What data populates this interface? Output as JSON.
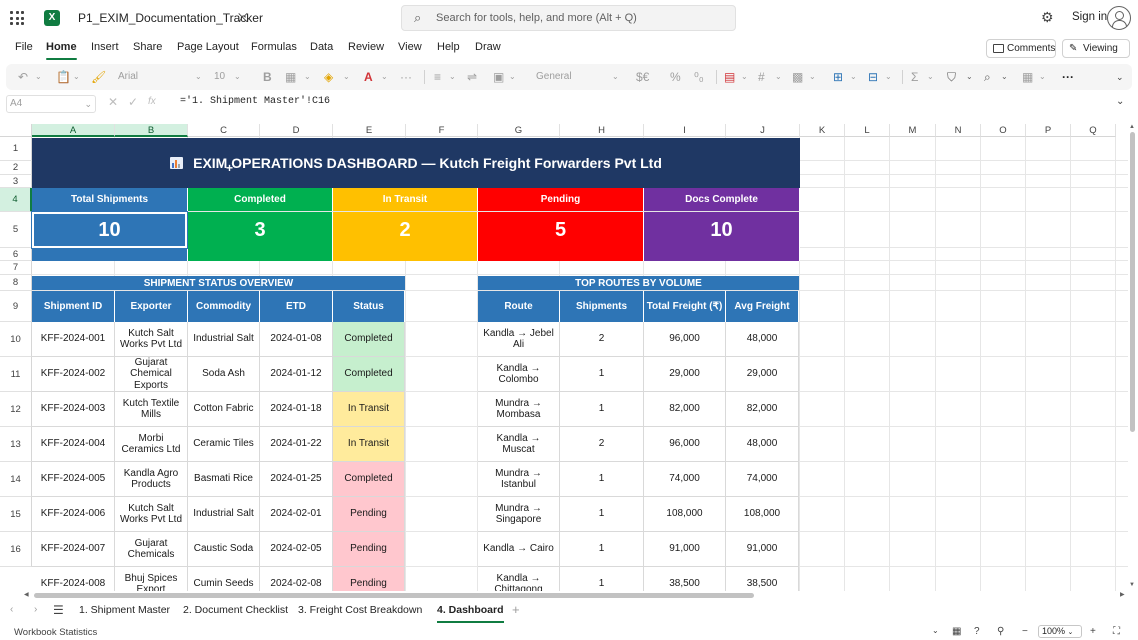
{
  "titlebar": {
    "doc_title": "P1_EXIM_Documentation_Tracker",
    "search_placeholder": "Search for tools, help, and more (Alt + Q)",
    "sign_in": "Sign in"
  },
  "menu": {
    "items": [
      "File",
      "Home",
      "Insert",
      "Share",
      "Page Layout",
      "Formulas",
      "Data",
      "Review",
      "View",
      "Help",
      "Draw"
    ],
    "active": "Home",
    "comments": "Comments",
    "viewing": "Viewing"
  },
  "toolbar": {
    "font_name": "Arial",
    "font_size": "10",
    "number_format": "General"
  },
  "formula_bar": {
    "name_box": "A4",
    "fx": "fx",
    "formula": "='1. Shipment Master'!C16"
  },
  "columns": [
    "A",
    "B",
    "C",
    "D",
    "E",
    "F",
    "G",
    "H",
    "I",
    "J",
    "K",
    "L",
    "M",
    "N",
    "O",
    "P",
    "Q"
  ],
  "rows": [
    "1",
    "2",
    "3",
    "4",
    "5",
    "6",
    "7",
    "8",
    "9",
    "10",
    "11",
    "12",
    "13",
    "14",
    "15",
    "16"
  ],
  "dashboard": {
    "title": "EXIM OPERATIONS DASHBOARD — Kutch Freight Forwarders Pvt Ltd",
    "kpis": [
      {
        "label": "Total Shipments",
        "value": "10",
        "color": "#2e75b6"
      },
      {
        "label": "Completed",
        "value": "3",
        "color": "#00b050"
      },
      {
        "label": "In Transit",
        "value": "2",
        "color": "#ffc000"
      },
      {
        "label": "Pending",
        "value": "5",
        "color": "#ff0000"
      },
      {
        "label": "Docs Complete",
        "value": "10",
        "color": "#7030a0"
      }
    ],
    "status_overview": {
      "title": "SHIPMENT STATUS OVERVIEW",
      "headers": [
        "Shipment ID",
        "Exporter",
        "Commodity",
        "ETD",
        "Status"
      ],
      "rows": [
        {
          "id": "KFF-2024-001",
          "exporter": "Kutch Salt Works Pvt Ltd",
          "commodity": "Industrial Salt",
          "etd": "2024-01-08",
          "status": "Completed",
          "status_color": "#c6efce"
        },
        {
          "id": "KFF-2024-002",
          "exporter": "Gujarat Chemical Exports",
          "commodity": "Soda Ash",
          "etd": "2024-01-12",
          "status": "Completed",
          "status_color": "#c6efce"
        },
        {
          "id": "KFF-2024-003",
          "exporter": "Kutch Textile Mills",
          "commodity": "Cotton Fabric",
          "etd": "2024-01-18",
          "status": "In Transit",
          "status_color": "#ffeb9c"
        },
        {
          "id": "KFF-2024-004",
          "exporter": "Morbi Ceramics Ltd",
          "commodity": "Ceramic Tiles",
          "etd": "2024-01-22",
          "status": "In Transit",
          "status_color": "#ffeb9c"
        },
        {
          "id": "KFF-2024-005",
          "exporter": "Kandla Agro Products",
          "commodity": "Basmati Rice",
          "etd": "2024-01-25",
          "status": "Completed",
          "status_color": "#ffc7ce"
        },
        {
          "id": "KFF-2024-006",
          "exporter": "Kutch Salt Works Pvt Ltd",
          "commodity": "Industrial Salt",
          "etd": "2024-02-01",
          "status": "Pending",
          "status_color": "#ffc7ce"
        },
        {
          "id": "KFF-2024-007",
          "exporter": "Gujarat Chemicals",
          "commodity": "Caustic Soda",
          "etd": "2024-02-05",
          "status": "Pending",
          "status_color": "#ffc7ce"
        },
        {
          "id": "KFF-2024-008",
          "exporter": "Bhuj Spices Export",
          "commodity": "Cumin Seeds",
          "etd": "2024-02-08",
          "status": "Pending",
          "status_color": "#ffc7ce"
        }
      ]
    },
    "top_routes": {
      "title": "TOP ROUTES BY VOLUME",
      "headers": [
        "Route",
        "Shipments",
        "Total Freight (₹)",
        "Avg Freight"
      ],
      "rows": [
        {
          "route": "Kandla → Jebel Ali",
          "shipments": "2",
          "total": "96,000",
          "avg": "48,000"
        },
        {
          "route": "Kandla → Colombo",
          "shipments": "1",
          "total": "29,000",
          "avg": "29,000"
        },
        {
          "route": "Mundra → Mombasa",
          "shipments": "1",
          "total": "82,000",
          "avg": "82,000"
        },
        {
          "route": "Kandla → Muscat",
          "shipments": "2",
          "total": "96,000",
          "avg": "48,000"
        },
        {
          "route": "Mundra → Istanbul",
          "shipments": "1",
          "total": "74,000",
          "avg": "74,000"
        },
        {
          "route": "Mundra → Singapore",
          "shipments": "1",
          "total": "108,000",
          "avg": "108,000"
        },
        {
          "route": "Kandla → Cairo",
          "shipments": "1",
          "total": "91,000",
          "avg": "91,000"
        },
        {
          "route": "Kandla → Chittagong",
          "shipments": "1",
          "total": "38,500",
          "avg": "38,500"
        }
      ]
    }
  },
  "sheets": {
    "tabs": [
      "1. Shipment Master",
      "2. Document Checklist",
      "3. Freight Cost Breakdown",
      "4. Dashboard"
    ],
    "active": "4. Dashboard"
  },
  "status": {
    "workbook_stats": "Workbook Statistics",
    "zoom": "100%"
  },
  "colors": {
    "banner": "#1f3864",
    "header_blue": "#2e75b6",
    "excel_green": "#107c41"
  }
}
